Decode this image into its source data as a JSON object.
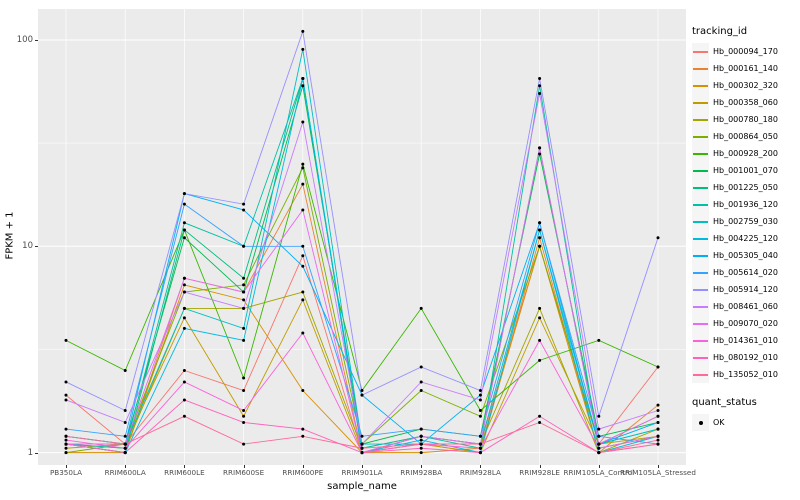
{
  "figure": {
    "y_axis_title": "FPKM + 1",
    "x_axis_title": "sample_name",
    "y_ticks": [
      1,
      10,
      100
    ],
    "legend_title": "tracking_id",
    "quant_legend": {
      "title": "quant_status",
      "items": [
        {
          "label": "OK"
        }
      ]
    },
    "panel_bg": "#EBEBEB",
    "grid_color": "#FFFFFF",
    "point_color": "#000000"
  },
  "chart_data": {
    "type": "line",
    "title": "",
    "xlabel": "sample_name",
    "ylabel": "FPKM + 1",
    "y_scale": "log10",
    "ylim": [
      1,
      130
    ],
    "legend_position": "right",
    "grid": true,
    "categories": [
      "PB350LA",
      "RRIM600LA",
      "RRIM600LE",
      "RRIM600SE",
      "RRIM600PE",
      "RRIM901LA",
      "RRIM928BA",
      "RRIM928LA",
      "RRIM928LE",
      "RRIM105LA_Control",
      "RRIM105LA_Stressed"
    ],
    "series": [
      {
        "name": "Hb_000094_170",
        "color": "#F8766D",
        "values": [
          1.9,
          1.1,
          2.5,
          2.0,
          9,
          1.0,
          1.2,
          1.1,
          10,
          1.1,
          2.6
        ]
      },
      {
        "name": "Hb_000161_140",
        "color": "#EA8331",
        "values": [
          1.1,
          1.0,
          7,
          6,
          20,
          1.0,
          1.1,
          1.0,
          11,
          1.0,
          1.7
        ]
      },
      {
        "name": "Hb_000302_320",
        "color": "#D89000",
        "values": [
          1.0,
          1.0,
          6.5,
          5.5,
          2.0,
          1.0,
          1.0,
          1.05,
          10,
          1.0,
          1.1
        ]
      },
      {
        "name": "Hb_000358_060",
        "color": "#C09B00",
        "values": [
          1.05,
          1.1,
          4.5,
          1.5,
          5.5,
          1.0,
          1.1,
          1.0,
          4.5,
          1.1,
          1.2
        ]
      },
      {
        "name": "Hb_000780_180",
        "color": "#A3A500",
        "values": [
          1.1,
          1.05,
          5,
          5,
          6,
          1.05,
          1.2,
          1.1,
          5,
          1.0,
          1.3
        ]
      },
      {
        "name": "Hb_000864_050",
        "color": "#7CAE00",
        "values": [
          1.0,
          1.1,
          6,
          6.5,
          24,
          1.1,
          2.0,
          1.5,
          10,
          1.1,
          1.5
        ]
      },
      {
        "name": "Hb_000928_200",
        "color": "#39B600",
        "values": [
          3.5,
          2.5,
          12,
          2.3,
          25,
          2.0,
          5.0,
          1.6,
          2.8,
          3.5,
          2.6
        ]
      },
      {
        "name": "Hb_001001_070",
        "color": "#00BB4E",
        "values": [
          1.2,
          1.1,
          11,
          6,
          60,
          1.1,
          1.3,
          1.2,
          28,
          1.2,
          1.4
        ]
      },
      {
        "name": "Hb_001225_050",
        "color": "#00BF7D",
        "values": [
          1.1,
          1.0,
          12,
          7,
          65,
          1.0,
          1.2,
          1.1,
          30,
          1.1,
          1.3
        ]
      },
      {
        "name": "Hb_001936_120",
        "color": "#00C1A3",
        "values": [
          1.1,
          1.05,
          13,
          10,
          65,
          1.05,
          1.2,
          1.05,
          60,
          1.05,
          1.2
        ]
      },
      {
        "name": "Hb_002759_030",
        "color": "#00BFC4",
        "values": [
          1.2,
          1.1,
          5,
          4,
          90,
          1.1,
          1.1,
          1.1,
          12,
          1.1,
          1.3
        ]
      },
      {
        "name": "Hb_004225_120",
        "color": "#00BAE0",
        "values": [
          1.1,
          1.0,
          4,
          3.5,
          65,
          1.0,
          1.15,
          1.0,
          12,
          1.0,
          1.2
        ]
      },
      {
        "name": "Hb_005305_040",
        "color": "#00B0F6",
        "values": [
          1.1,
          1.1,
          18,
          15,
          8,
          1.9,
          1.1,
          1.9,
          13,
          1.1,
          1.4
        ]
      },
      {
        "name": "Hb_005614_020",
        "color": "#35A2FF",
        "values": [
          1.3,
          1.2,
          16,
          10,
          10,
          1.2,
          1.3,
          1.2,
          13,
          1.2,
          1.1
        ]
      },
      {
        "name": "Hb_005914_120",
        "color": "#9590FF",
        "values": [
          2.2,
          1.6,
          18,
          16,
          110,
          1.9,
          2.6,
          2.0,
          65,
          1.5,
          11
        ]
      },
      {
        "name": "Hb_008461_060",
        "color": "#C77CFF",
        "values": [
          1.8,
          1.4,
          6,
          5,
          40,
          1.1,
          2.2,
          1.8,
          55,
          1.3,
          1.6
        ]
      },
      {
        "name": "Hb_009070_020",
        "color": "#E76BF3",
        "values": [
          1.1,
          1.1,
          7,
          6,
          15,
          1.0,
          1.2,
          1.1,
          30,
          1.1,
          1.5
        ]
      },
      {
        "name": "Hb_014361_010",
        "color": "#FA62DB",
        "values": [
          1.15,
          1.05,
          2.2,
          1.6,
          3.8,
          1.0,
          1.1,
          1.05,
          3.5,
          1.05,
          1.2
        ]
      },
      {
        "name": "Hb_080192_010",
        "color": "#FF62BC",
        "values": [
          1.1,
          1.0,
          1.8,
          1.4,
          1.3,
          1.0,
          1.05,
          1.0,
          1.5,
          1.0,
          1.1
        ]
      },
      {
        "name": "Hb_135052_010",
        "color": "#FF6A98",
        "values": [
          1.2,
          1.1,
          1.5,
          1.1,
          1.2,
          1.05,
          1.1,
          1.1,
          1.4,
          1.0,
          1.15
        ]
      }
    ]
  }
}
